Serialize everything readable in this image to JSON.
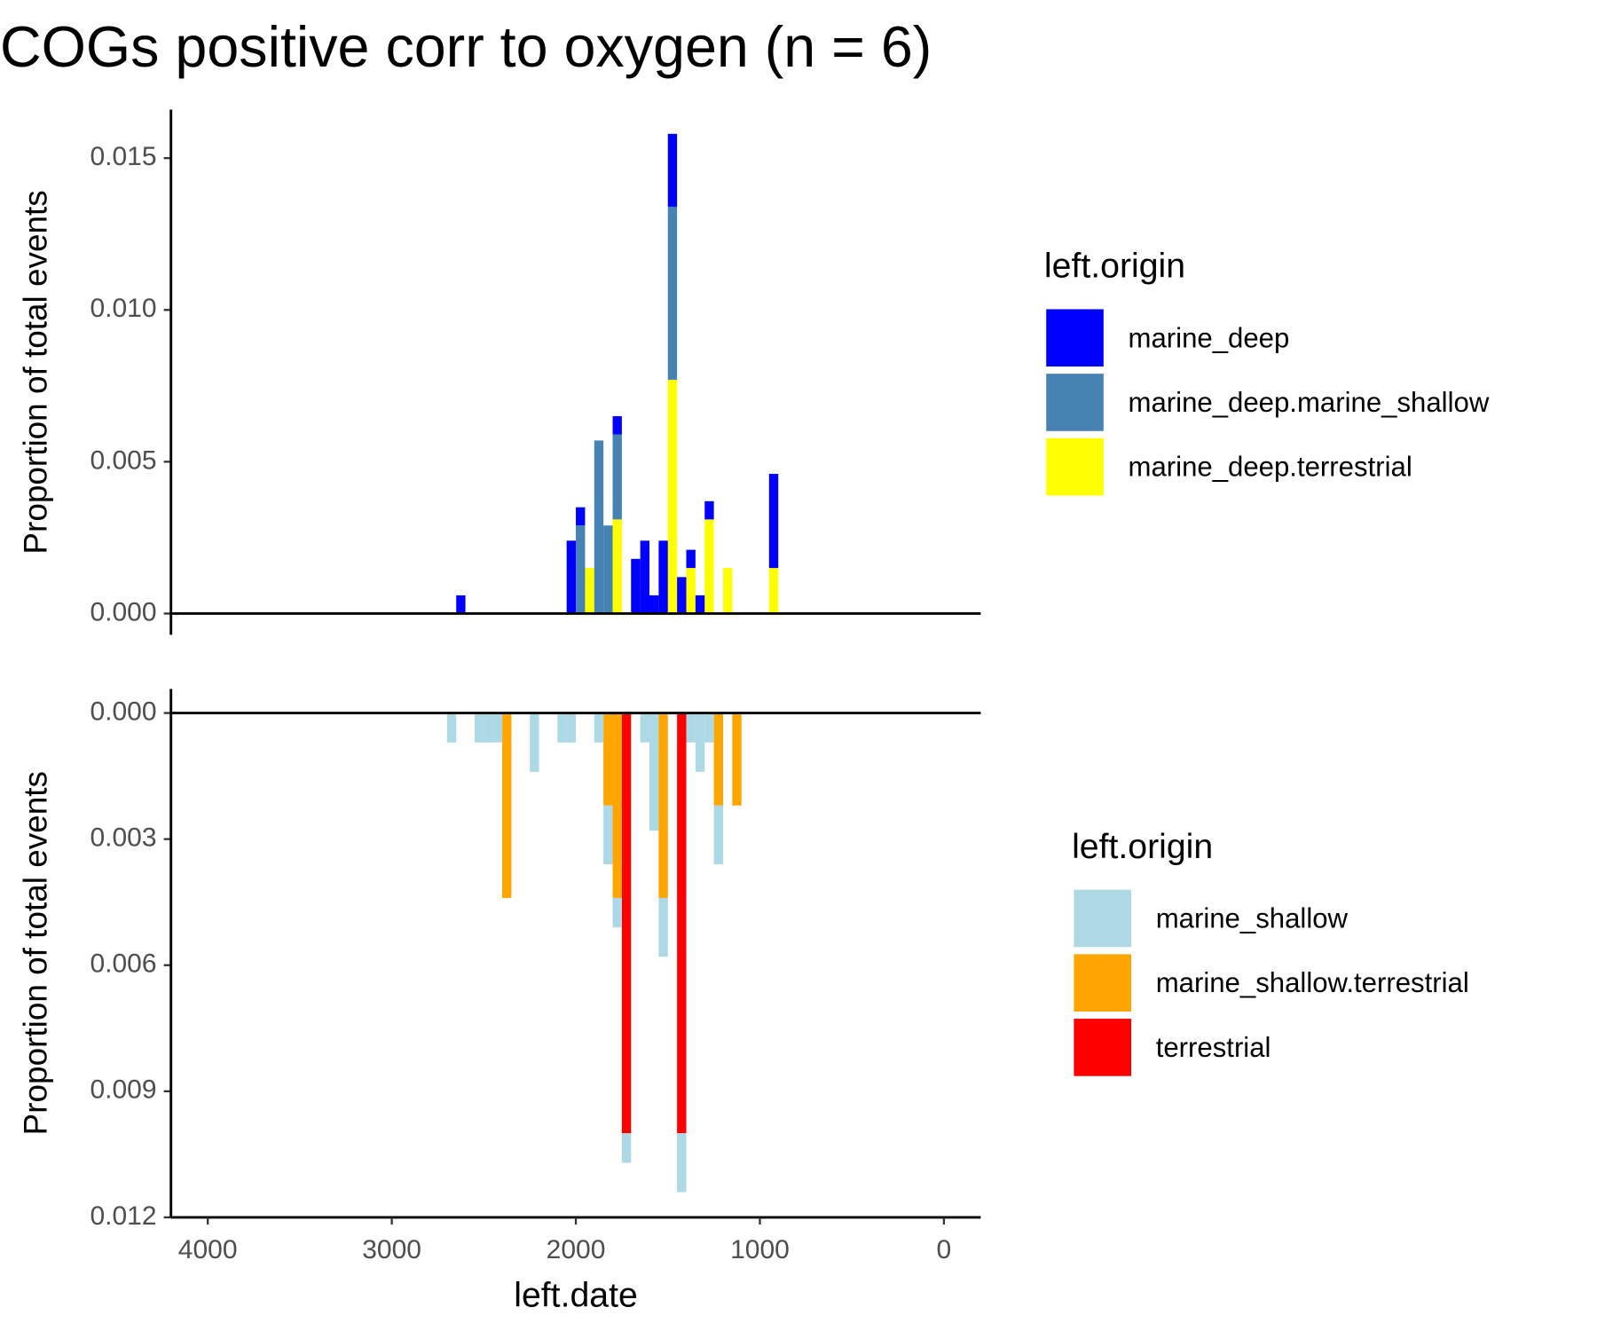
{
  "title": "COGs positive corr to oxygen (n = 6)",
  "chart_data": [
    {
      "type": "histogram",
      "ylabel": "Proportion of total events",
      "legend_title": "left.origin",
      "bins": [
        2700,
        2650,
        2600,
        2550,
        2500,
        2450,
        2400,
        2350,
        2300,
        2250,
        2200,
        2150,
        2100,
        2050,
        2000,
        1950,
        1900,
        1850,
        1800,
        1750,
        1700,
        1650,
        1600,
        1550,
        1500,
        1450,
        1400,
        1350,
        1300,
        1250,
        1200,
        1150,
        1100,
        1050,
        1000,
        950,
        900
      ],
      "xlim": [
        4200,
        -200
      ],
      "ylim": [
        -0.0007,
        0.0166
      ],
      "yticks": [
        {
          "value": 0,
          "label": "0.000"
        },
        {
          "value": 0.005,
          "label": "0.005"
        },
        {
          "value": 0.01,
          "label": "0.010"
        },
        {
          "value": 0.015,
          "label": "0.015"
        }
      ],
      "series": [
        {
          "name": "marine_deep",
          "color": "#0000ff",
          "values": [
            0,
            0.0006,
            0,
            0,
            0,
            0,
            0,
            0,
            0,
            0,
            0,
            0,
            0,
            0.0024,
            0.0006,
            0,
            0,
            0,
            0.0006,
            0,
            0.0018,
            0.0024,
            0.0006,
            0.0024,
            0.0024,
            0.0012,
            0.0006,
            0.0006,
            0.0006,
            0,
            0,
            0,
            0,
            0,
            0,
            0.0031
          ]
        },
        {
          "name": "marine_deep.marine_shallow",
          "color": "#4682b4",
          "values": [
            0,
            0,
            0,
            0,
            0,
            0,
            0,
            0,
            0,
            0,
            0,
            0,
            0,
            0,
            0.0029,
            0,
            0.0057,
            0.0029,
            0.0028,
            0,
            0,
            0,
            0,
            0,
            0.0057,
            0,
            0,
            0,
            0,
            0,
            0,
            0,
            0,
            0,
            0,
            0
          ]
        },
        {
          "name": "marine_deep.terrestrial",
          "color": "#ffff00",
          "values": [
            0,
            0,
            0,
            0,
            0,
            0,
            0,
            0,
            0,
            0,
            0,
            0,
            0,
            0,
            0,
            0.0015,
            0,
            0,
            0.0031,
            0,
            0,
            0,
            0,
            0,
            0.0077,
            0,
            0.0015,
            0,
            0.0031,
            0,
            0.0015,
            0,
            0,
            0,
            0,
            0.0015
          ]
        }
      ]
    },
    {
      "type": "histogram",
      "ylabel": "Proportion of total events",
      "legend_title": "left.origin",
      "xlabel": "left.date",
      "bins": [
        2700,
        2650,
        2600,
        2550,
        2500,
        2450,
        2400,
        2350,
        2300,
        2250,
        2200,
        2150,
        2100,
        2050,
        2000,
        1950,
        1900,
        1850,
        1800,
        1750,
        1700,
        1650,
        1600,
        1550,
        1500,
        1450,
        1400,
        1350,
        1300,
        1250,
        1200,
        1150,
        1100,
        1050,
        1000,
        950,
        900
      ],
      "xlim": [
        4200,
        -200
      ],
      "ylim": [
        -0.00057,
        0.012
      ],
      "y_reverse": true,
      "xticks": [
        4000,
        3000,
        2000,
        1000,
        0
      ],
      "yticks": [
        {
          "value": 0,
          "label": "0.000"
        },
        {
          "value": 0.003,
          "label": "0.003"
        },
        {
          "value": 0.006,
          "label": "0.006"
        },
        {
          "value": 0.009,
          "label": "0.009"
        },
        {
          "value": 0.012,
          "label": "0.012"
        }
      ],
      "series": [
        {
          "name": "marine_shallow",
          "color": "#add8e6",
          "values": [
            0.0007,
            0,
            0,
            0.0007,
            0.0007,
            0.0007,
            0,
            0,
            0,
            0.0014,
            0,
            0,
            0.0007,
            0.0007,
            0,
            0,
            0.0007,
            0.0014,
            0.0007,
            0.0007,
            0,
            0.0007,
            0.0028,
            0.0014,
            0,
            0.0014,
            0.0007,
            0.0014,
            0.0007,
            0.0014,
            0,
            0,
            0,
            0,
            0,
            0
          ]
        },
        {
          "name": "marine_shallow.terrestrial",
          "color": "#ffa500",
          "values": [
            0,
            0,
            0,
            0,
            0,
            0,
            0.0044,
            0,
            0,
            0,
            0,
            0,
            0,
            0,
            0,
            0,
            0,
            0.0022,
            0.0044,
            0,
            0,
            0,
            0,
            0.0044,
            0,
            0,
            0,
            0,
            0,
            0.0022,
            0,
            0.0022,
            0,
            0,
            0,
            0
          ]
        },
        {
          "name": "terrestrial",
          "color": "#ff0000",
          "values": [
            0,
            0,
            0,
            0,
            0,
            0,
            0,
            0,
            0,
            0,
            0,
            0,
            0,
            0,
            0,
            0,
            0,
            0,
            0,
            0.01,
            0,
            0,
            0,
            0,
            0,
            0.01,
            0,
            0,
            0,
            0,
            0,
            0,
            0,
            0,
            0,
            0
          ]
        }
      ]
    }
  ]
}
